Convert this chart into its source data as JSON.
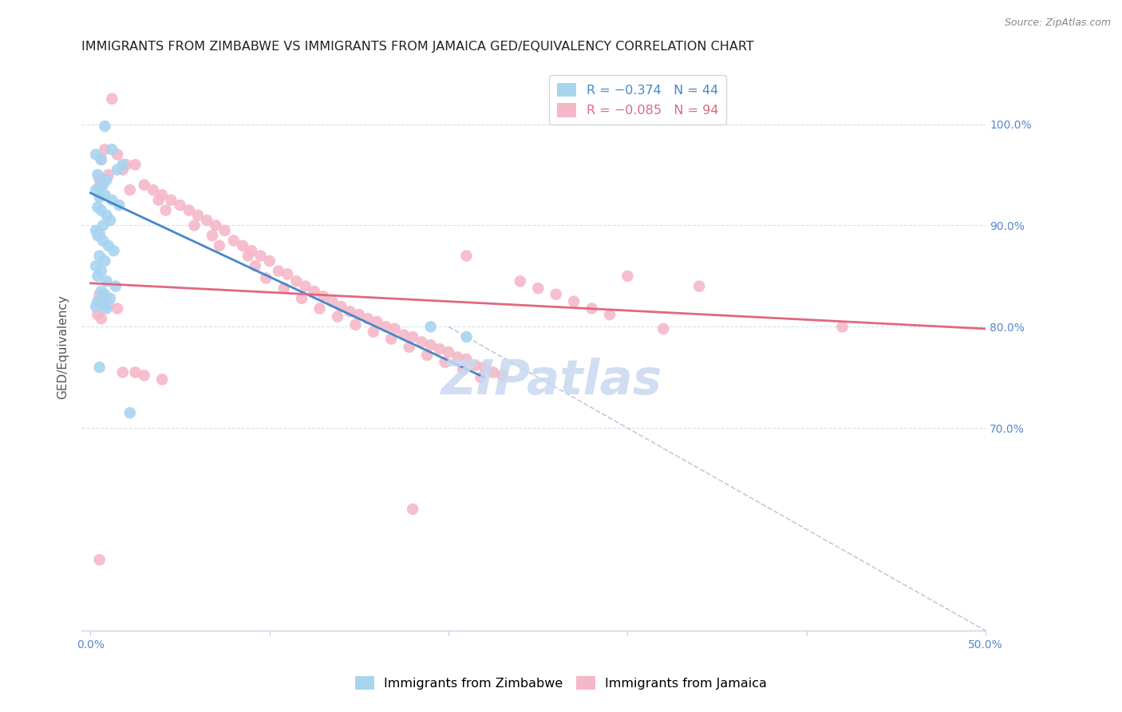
{
  "title": "IMMIGRANTS FROM ZIMBABWE VS IMMIGRANTS FROM JAMAICA GED/EQUIVALENCY CORRELATION CHART",
  "source": "Source: ZipAtlas.com",
  "ylabel": "GED/Equivalency",
  "zimbabwe_color": "#a8d4f0",
  "jamaica_color": "#f5b8c8",
  "zimbabwe_line_color": "#4488cc",
  "jamaica_line_color": "#e06880",
  "diagonal_color": "#c0ccd8",
  "watermark": "ZIPatlas",
  "watermark_color": "#c8d8f0",
  "grid_color": "#d8e0ec",
  "axis_label_color": "#5588cc",
  "background_color": "#ffffff",
  "title_fontsize": 11.5,
  "axis_label_fontsize": 11,
  "tick_fontsize": 10,
  "legend_fontsize": 11.5,
  "zimbabwe_scatter": {
    "x": [
      0.008,
      0.012,
      0.003,
      0.006,
      0.018,
      0.015,
      0.004,
      0.009,
      0.007,
      0.005,
      0.003,
      0.008,
      0.005,
      0.012,
      0.016,
      0.004,
      0.006,
      0.009,
      0.011,
      0.007,
      0.003,
      0.005,
      0.004,
      0.007,
      0.01,
      0.013,
      0.005,
      0.008,
      0.003,
      0.006,
      0.004,
      0.009,
      0.014,
      0.006,
      0.008,
      0.011,
      0.004,
      0.007,
      0.003,
      0.009,
      0.005,
      0.19,
      0.21,
      0.022
    ],
    "y": [
      0.998,
      0.975,
      0.97,
      0.965,
      0.96,
      0.955,
      0.95,
      0.945,
      0.94,
      0.938,
      0.935,
      0.93,
      0.928,
      0.925,
      0.92,
      0.918,
      0.915,
      0.91,
      0.905,
      0.9,
      0.895,
      0.892,
      0.89,
      0.885,
      0.88,
      0.875,
      0.87,
      0.865,
      0.86,
      0.855,
      0.85,
      0.845,
      0.84,
      0.835,
      0.832,
      0.828,
      0.825,
      0.822,
      0.82,
      0.818,
      0.76,
      0.8,
      0.79,
      0.715
    ]
  },
  "jamaica_scatter": {
    "x": [
      0.012,
      0.008,
      0.015,
      0.006,
      0.02,
      0.025,
      0.018,
      0.01,
      0.005,
      0.03,
      0.035,
      0.022,
      0.04,
      0.045,
      0.038,
      0.05,
      0.055,
      0.042,
      0.06,
      0.065,
      0.07,
      0.058,
      0.075,
      0.068,
      0.08,
      0.085,
      0.072,
      0.09,
      0.088,
      0.095,
      0.1,
      0.092,
      0.105,
      0.11,
      0.098,
      0.115,
      0.12,
      0.108,
      0.125,
      0.13,
      0.118,
      0.135,
      0.14,
      0.128,
      0.145,
      0.15,
      0.138,
      0.155,
      0.16,
      0.148,
      0.165,
      0.17,
      0.158,
      0.175,
      0.18,
      0.168,
      0.185,
      0.19,
      0.178,
      0.195,
      0.2,
      0.188,
      0.205,
      0.21,
      0.198,
      0.215,
      0.22,
      0.208,
      0.225,
      0.23,
      0.218,
      0.24,
      0.25,
      0.26,
      0.27,
      0.28,
      0.29,
      0.3,
      0.32,
      0.34,
      0.005,
      0.008,
      0.01,
      0.015,
      0.004,
      0.006,
      0.018,
      0.025,
      0.03,
      0.04,
      0.21,
      0.42,
      0.005,
      0.18
    ],
    "y": [
      1.025,
      0.975,
      0.97,
      0.965,
      0.96,
      0.96,
      0.955,
      0.95,
      0.945,
      0.94,
      0.935,
      0.935,
      0.93,
      0.925,
      0.925,
      0.92,
      0.915,
      0.915,
      0.91,
      0.905,
      0.9,
      0.9,
      0.895,
      0.89,
      0.885,
      0.88,
      0.88,
      0.875,
      0.87,
      0.87,
      0.865,
      0.86,
      0.855,
      0.852,
      0.848,
      0.845,
      0.84,
      0.838,
      0.835,
      0.83,
      0.828,
      0.825,
      0.82,
      0.818,
      0.815,
      0.812,
      0.81,
      0.808,
      0.805,
      0.802,
      0.8,
      0.798,
      0.795,
      0.792,
      0.79,
      0.788,
      0.785,
      0.782,
      0.78,
      0.778,
      0.775,
      0.772,
      0.77,
      0.768,
      0.765,
      0.762,
      0.76,
      0.758,
      0.755,
      0.752,
      0.75,
      0.845,
      0.838,
      0.832,
      0.825,
      0.818,
      0.812,
      0.85,
      0.798,
      0.84,
      0.832,
      0.828,
      0.822,
      0.818,
      0.812,
      0.808,
      0.755,
      0.755,
      0.752,
      0.748,
      0.87,
      0.8,
      0.57,
      0.62
    ]
  },
  "zimbabwe_line": {
    "x": [
      0.0,
      0.22
    ],
    "y": [
      0.932,
      0.75
    ]
  },
  "jamaica_line": {
    "x": [
      0.0,
      0.5
    ],
    "y": [
      0.843,
      0.798
    ]
  },
  "diagonal_line": {
    "x": [
      0.2,
      0.5
    ],
    "y": [
      0.8,
      0.5
    ]
  }
}
